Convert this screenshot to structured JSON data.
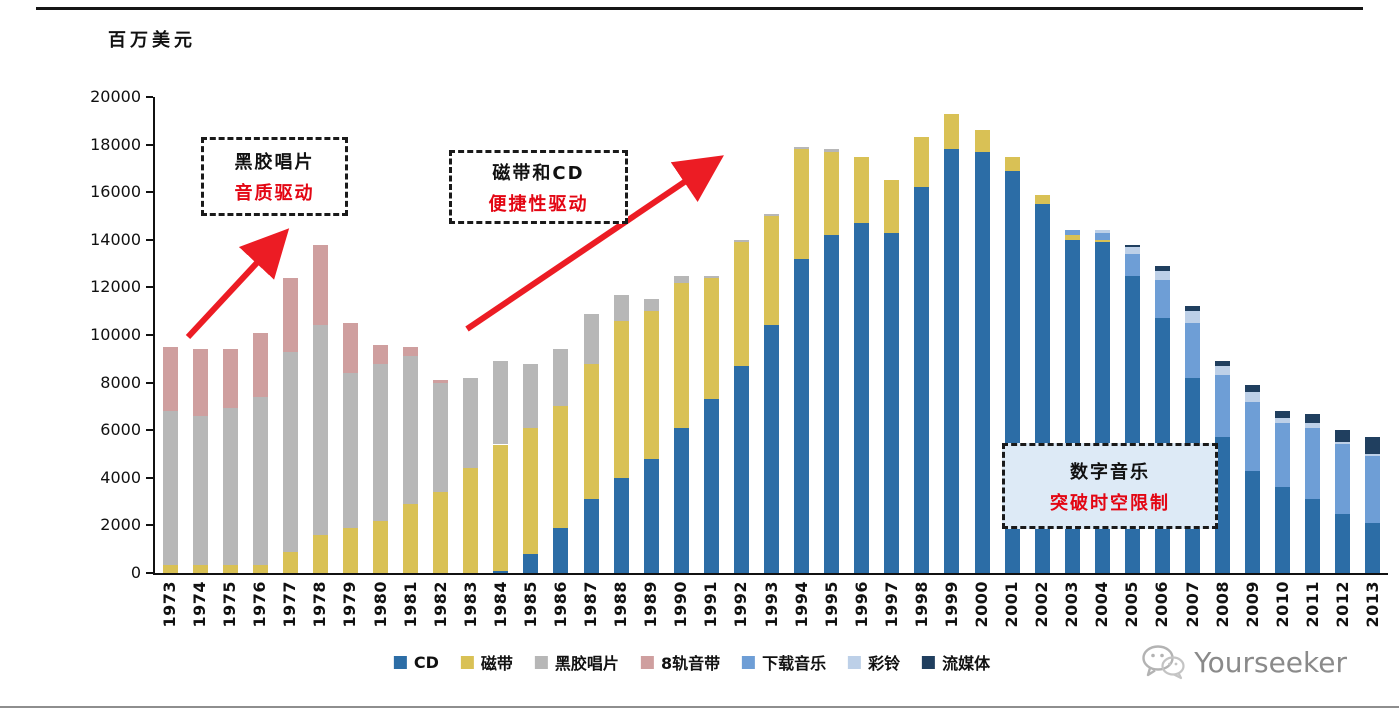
{
  "page": {
    "unit_label": "百万美元",
    "watermark": "Yourseeker"
  },
  "annotations": [
    {
      "line1": "黑胶唱片",
      "line2": "音质驱动"
    },
    {
      "line1": "磁带和CD",
      "line2": "便捷性驱动"
    },
    {
      "line1": "数字音乐",
      "line2": "突破时空限制"
    }
  ],
  "chart_data": {
    "type": "bar",
    "stacked": true,
    "title": "",
    "xlabel": "",
    "ylabel": "百万美元",
    "ylim": [
      0,
      20000
    ],
    "ytick_step": 2000,
    "grid": false,
    "legend_position": "bottom",
    "categories": [
      1973,
      1974,
      1975,
      1976,
      1977,
      1978,
      1979,
      1980,
      1981,
      1982,
      1983,
      1984,
      1985,
      1986,
      1987,
      1988,
      1989,
      1990,
      1991,
      1992,
      1993,
      1994,
      1995,
      1996,
      1997,
      1998,
      1999,
      2000,
      2001,
      2002,
      2003,
      2004,
      2005,
      2006,
      2007,
      2008,
      2009,
      2010,
      2011,
      2012,
      2013
    ],
    "series": [
      {
        "name": "CD",
        "color": "#2c6da6",
        "values": [
          0,
          0,
          0,
          0,
          0,
          0,
          0,
          0,
          0,
          0,
          0,
          100,
          800,
          1900,
          3100,
          4000,
          4800,
          6100,
          7300,
          8700,
          10400,
          13200,
          14200,
          14700,
          14300,
          16200,
          17800,
          17700,
          16900,
          15500,
          14000,
          13900,
          12500,
          10700,
          8200,
          5700,
          4300,
          3600,
          3100,
          2500,
          2100
        ]
      },
      {
        "name": "磁带",
        "color": "#d9c155",
        "values": [
          350,
          350,
          350,
          350,
          900,
          1600,
          1900,
          2200,
          2900,
          3400,
          4400,
          5300,
          5300,
          5100,
          5700,
          6600,
          6200,
          6100,
          5100,
          5200,
          4600,
          4600,
          3500,
          2800,
          2200,
          2100,
          1500,
          900,
          600,
          400,
          200,
          100,
          0,
          0,
          0,
          0,
          0,
          0,
          0,
          0,
          0
        ]
      },
      {
        "name": "黑胶唱片",
        "color": "#b7b7b7",
        "values": [
          6450,
          6250,
          6600,
          7050,
          8400,
          8800,
          6500,
          6600,
          6200,
          4600,
          3800,
          3500,
          2700,
          2400,
          2100,
          1100,
          500,
          300,
          100,
          100,
          100,
          100,
          100,
          0,
          0,
          0,
          0,
          0,
          0,
          0,
          0,
          0,
          0,
          0,
          0,
          0,
          0,
          0,
          0,
          0,
          0
        ]
      },
      {
        "name": "8轨音带",
        "color": "#cf9f9f",
        "values": [
          2700,
          2800,
          2450,
          2700,
          3100,
          3400,
          2100,
          800,
          400,
          100,
          0,
          0,
          0,
          0,
          0,
          0,
          0,
          0,
          0,
          0,
          0,
          0,
          0,
          0,
          0,
          0,
          0,
          0,
          0,
          0,
          0,
          0,
          0,
          0,
          0,
          0,
          0,
          0,
          0,
          0,
          0
        ]
      },
      {
        "name": "下载音乐",
        "color": "#6e9ed6",
        "values": [
          0,
          0,
          0,
          0,
          0,
          0,
          0,
          0,
          0,
          0,
          0,
          0,
          0,
          0,
          0,
          0,
          0,
          0,
          0,
          0,
          0,
          0,
          0,
          0,
          0,
          0,
          0,
          0,
          0,
          0,
          200,
          300,
          900,
          1600,
          2300,
          2600,
          2900,
          2700,
          3000,
          2900,
          2800
        ]
      },
      {
        "name": "彩铃",
        "color": "#bdd0e8",
        "values": [
          0,
          0,
          0,
          0,
          0,
          0,
          0,
          0,
          0,
          0,
          0,
          0,
          0,
          0,
          0,
          0,
          0,
          0,
          0,
          0,
          0,
          0,
          0,
          0,
          0,
          0,
          0,
          0,
          0,
          0,
          0,
          100,
          300,
          400,
          500,
          400,
          400,
          200,
          200,
          100,
          100
        ]
      },
      {
        "name": "流媒体",
        "color": "#203f5f",
        "values": [
          0,
          0,
          0,
          0,
          0,
          0,
          0,
          0,
          0,
          0,
          0,
          0,
          0,
          0,
          0,
          0,
          0,
          0,
          0,
          0,
          0,
          0,
          0,
          0,
          0,
          0,
          0,
          0,
          0,
          0,
          0,
          0,
          100,
          200,
          200,
          200,
          300,
          300,
          400,
          500,
          700
        ]
      }
    ]
  }
}
